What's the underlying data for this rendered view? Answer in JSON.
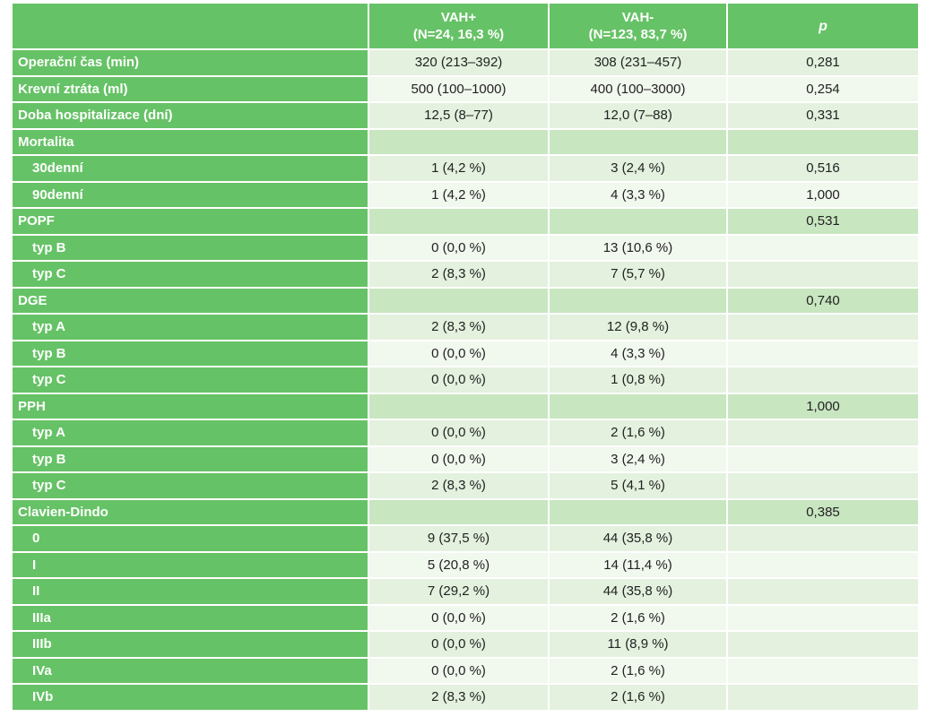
{
  "header": {
    "col1_line1": "VAH+",
    "col1_line2": "(N=24, 16,3 %)",
    "col2_line1": "VAH-",
    "col2_line2": "(N=123, 83,7 %)",
    "col3": "p"
  },
  "rows": [
    {
      "label": "Operační čas (min)",
      "a": "320 (213–392)",
      "b": "308 (231–457)",
      "p": "0,281"
    },
    {
      "label": "Krevní ztráta (ml)",
      "a": "500 (100–1000)",
      "b": "400 (100–3000)",
      "p": "0,254"
    },
    {
      "label": "Doba hospitalizace (dní)",
      "a": "12,5 (8–77)",
      "b": "12,0 (7–88)",
      "p": "0,331"
    },
    {
      "label": "Mortalita",
      "a": "",
      "b": "",
      "p": ""
    },
    {
      "label": "30denní",
      "a": "1 (4,2 %)",
      "b": "3 (2,4 %)",
      "p": "0,516"
    },
    {
      "label": "90denní",
      "a": "1 (4,2 %)",
      "b": "4 (3,3 %)",
      "p": "1,000"
    },
    {
      "label": "POPF",
      "a": "",
      "b": "",
      "p": "0,531"
    },
    {
      "label": "typ B",
      "a": "0 (0,0 %)",
      "b": "13 (10,6 %)",
      "p": ""
    },
    {
      "label": "typ C",
      "a": "2 (8,3 %)",
      "b": "7 (5,7 %)",
      "p": ""
    },
    {
      "label": "DGE",
      "a": "",
      "b": "",
      "p": "0,740"
    },
    {
      "label": "typ A",
      "a": "2 (8,3 %)",
      "b": "12 (9,8 %)",
      "p": ""
    },
    {
      "label": "typ B",
      "a": "0 (0,0 %)",
      "b": "4 (3,3 %)",
      "p": ""
    },
    {
      "label": "typ C",
      "a": "0 (0,0 %)",
      "b": "1 (0,8 %)",
      "p": ""
    },
    {
      "label": "PPH",
      "a": "",
      "b": "",
      "p": "1,000"
    },
    {
      "label": "typ A",
      "a": "0 (0,0 %)",
      "b": "2 (1,6 %)",
      "p": ""
    },
    {
      "label": "typ B",
      "a": "0 (0,0 %)",
      "b": "3 (2,4 %)",
      "p": ""
    },
    {
      "label": "typ C",
      "a": "2 (8,3 %)",
      "b": "5 (4,1 %)",
      "p": ""
    },
    {
      "label": "Clavien-Dindo",
      "a": "",
      "b": "",
      "p": "0,385"
    },
    {
      "label": "0",
      "a": "9 (37,5 %)",
      "b": "44 (35,8 %)",
      "p": ""
    },
    {
      "label": "I",
      "a": "5 (20,8 %)",
      "b": "14 (11,4 %)",
      "p": ""
    },
    {
      "label": "II",
      "a": "7 (29,2 %)",
      "b": "44 (35,8 %)",
      "p": ""
    },
    {
      "label": "IIIa",
      "a": "0 (0,0 %)",
      "b": "2 (1,6 %)",
      "p": ""
    },
    {
      "label": "IIIb",
      "a": "0 (0,0 %)",
      "b": "11 (8,9 %)",
      "p": ""
    },
    {
      "label": "IVa",
      "a": "0 (0,0 %)",
      "b": "2 (1,6 %)",
      "p": ""
    },
    {
      "label": "IVb",
      "a": "2 (8,3 %)",
      "b": "2 (1,6 %)",
      "p": ""
    }
  ]
}
